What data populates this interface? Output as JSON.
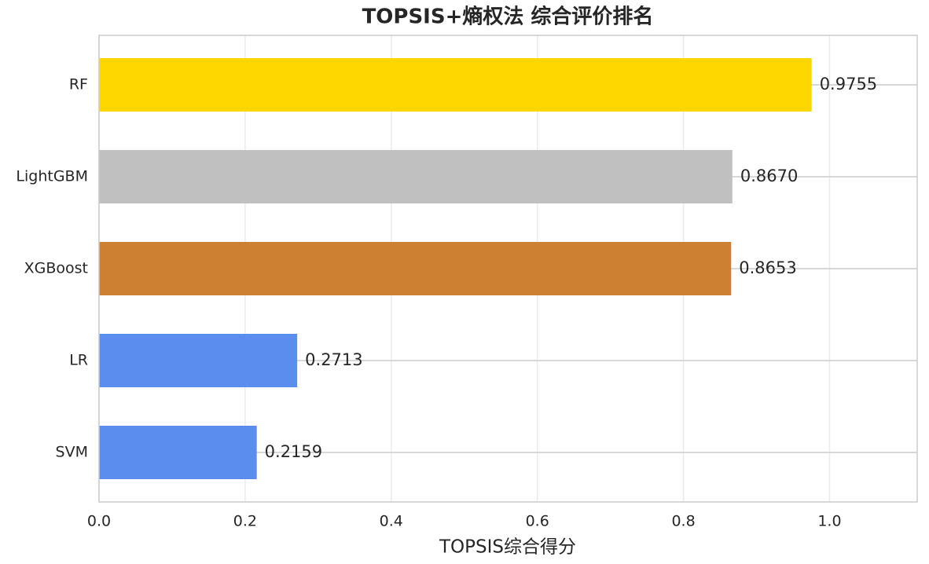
{
  "chart_data": {
    "type": "barh",
    "title": "TOPSIS+熵权法 综合评价排名",
    "xlabel": "TOPSIS综合得分",
    "categories": [
      "RF",
      "LightGBM",
      "XGBoost",
      "LR",
      "SVM"
    ],
    "values": [
      0.9755,
      0.867,
      0.8653,
      0.2713,
      0.2159
    ],
    "value_labels": [
      "0.9755",
      "0.8670",
      "0.8653",
      "0.2713",
      "0.2159"
    ],
    "colors": [
      "#ffd700",
      "#c0c0c0",
      "#cd7f32",
      "#5b8def",
      "#5b8def"
    ],
    "xlim": [
      0,
      1.12
    ],
    "xticks": [
      {
        "value": 0,
        "label": "0.0"
      },
      0.2,
      0.4,
      0.6,
      0.8,
      {
        "value": 1,
        "label": "1.0"
      }
    ],
    "grid": true
  }
}
